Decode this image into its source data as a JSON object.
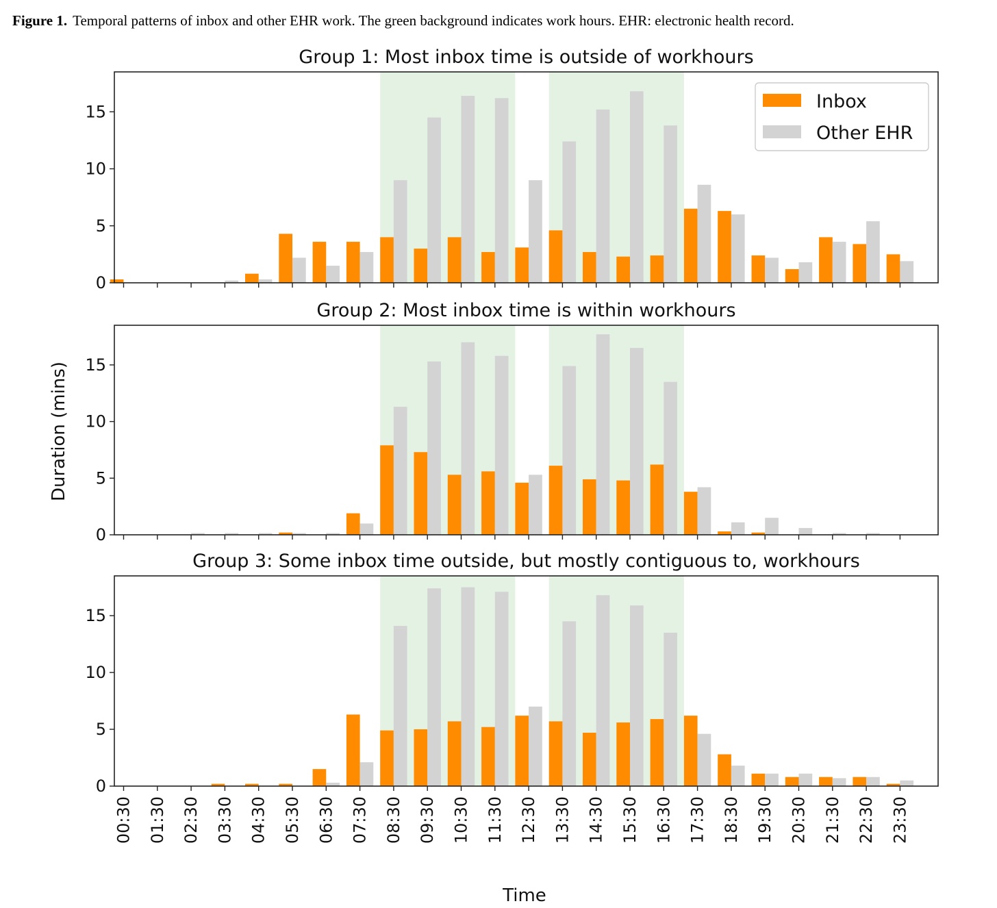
{
  "caption": {
    "label": "Figure 1.",
    "text": "Temporal patterns of inbox and other EHR work. The green background indicates work hours. EHR: electronic health record."
  },
  "colors": {
    "inbox": "#ff8c00",
    "other": "#d3d3d3",
    "workhours": "#e3f2e3"
  },
  "chart_data": {
    "type": "bar",
    "ylabel": "Duration (mins)",
    "xlabel": "Time",
    "ylim": [
      0,
      18.5
    ],
    "yticks": [
      0,
      5,
      10,
      15
    ],
    "categories": [
      "00:30",
      "01:30",
      "02:30",
      "03:30",
      "04:30",
      "05:30",
      "06:30",
      "07:30",
      "08:30",
      "09:30",
      "10:30",
      "11:30",
      "12:30",
      "13:30",
      "14:30",
      "15:30",
      "16:30",
      "17:30",
      "18:30",
      "19:30",
      "20:30",
      "21:30",
      "22:30",
      "23:30"
    ],
    "workhours": [
      [
        "08:30",
        "12:30"
      ],
      [
        "13:30",
        "17:30"
      ]
    ],
    "legend": {
      "position": "top-right",
      "entries": [
        "Inbox",
        "Other EHR"
      ]
    },
    "panels": [
      {
        "title": "Group 1: Most inbox time is outside of workhours",
        "series": [
          {
            "name": "Inbox",
            "values": [
              0.3,
              0,
              0,
              0,
              0.8,
              4.3,
              3.6,
              3.6,
              4.0,
              3.0,
              4.0,
              2.7,
              3.1,
              4.6,
              2.7,
              2.3,
              2.4,
              6.5,
              6.3,
              2.4,
              1.2,
              4.0,
              3.4,
              2.5
            ]
          },
          {
            "name": "Other EHR",
            "values": [
              0,
              0,
              0,
              0.2,
              0.3,
              2.2,
              1.5,
              2.7,
              9.0,
              14.5,
              16.4,
              16.2,
              9.0,
              12.4,
              15.2,
              16.8,
              13.8,
              8.6,
              6.0,
              2.2,
              1.8,
              3.6,
              5.4,
              1.9
            ]
          }
        ]
      },
      {
        "title": "Group 2: Most inbox time is within workhours",
        "series": [
          {
            "name": "Inbox",
            "values": [
              0,
              0,
              0,
              0,
              0,
              0.2,
              0,
              1.9,
              7.9,
              7.3,
              5.3,
              5.6,
              4.6,
              6.1,
              4.9,
              4.8,
              6.2,
              3.8,
              0.3,
              0.2,
              0,
              0,
              0,
              0
            ]
          },
          {
            "name": "Other EHR",
            "values": [
              0,
              0,
              0.15,
              0.15,
              0.15,
              0.15,
              0.15,
              1.0,
              11.3,
              15.3,
              17.0,
              15.8,
              5.3,
              14.9,
              17.7,
              16.5,
              13.5,
              4.2,
              1.1,
              1.5,
              0.6,
              0.15,
              0.15,
              0
            ]
          }
        ]
      },
      {
        "title": "Group 3: Some inbox time outside, but mostly contiguous to, workhours",
        "series": [
          {
            "name": "Inbox",
            "values": [
              0,
              0,
              0,
              0.2,
              0.2,
              0.2,
              1.5,
              6.3,
              4.9,
              5.0,
              5.7,
              5.2,
              6.2,
              5.7,
              4.7,
              5.6,
              5.9,
              6.2,
              2.8,
              1.1,
              0.8,
              0.8,
              0.8,
              0.2
            ]
          },
          {
            "name": "Other EHR",
            "values": [
              0,
              0,
              0,
              0,
              0,
              0,
              0.3,
              2.1,
              14.1,
              17.4,
              17.5,
              17.1,
              7.0,
              14.5,
              16.8,
              15.9,
              13.5,
              4.6,
              1.8,
              1.1,
              1.1,
              0.7,
              0.8,
              0.5
            ]
          }
        ]
      }
    ]
  }
}
